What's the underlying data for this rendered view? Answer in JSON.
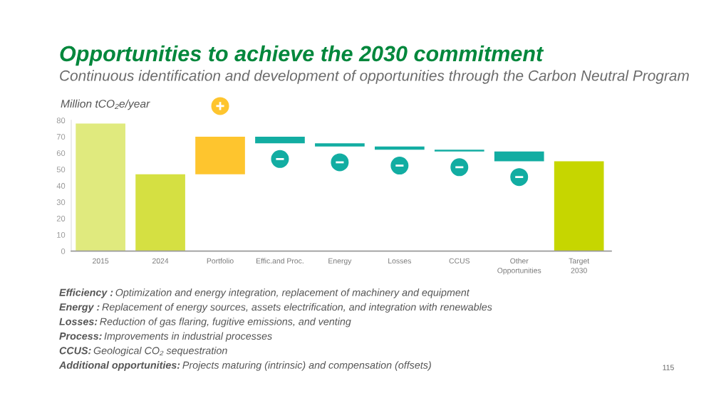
{
  "chart_data": {
    "type": "bar",
    "title": "Opportunities to achieve the 2030 commitment",
    "subtitle": "Continuous identification and development of opportunities through the Carbon Neutral Program",
    "ylabel": "Million tCO₂e/year",
    "categories": [
      "2015",
      "2024",
      "Portfolio",
      "Effic.and Proc.",
      "Energy",
      "Losses",
      "CCUS",
      "Other\nOpportunities",
      "Target\n2030"
    ],
    "values": [
      78,
      47,
      23,
      -4,
      -2,
      -2,
      -1,
      -6,
      55
    ],
    "base": [
      null,
      null,
      47,
      70,
      66,
      64,
      62,
      61,
      null
    ],
    "colors": [
      "#e0ea7e",
      "#d5e042",
      "#fec52e",
      "#12ada2",
      "#12ada2",
      "#12ada2",
      "#12ada2",
      "#12ada2",
      "#c6d600"
    ],
    "ylim": [
      0,
      80
    ],
    "yticks": [
      0,
      10,
      20,
      30,
      40,
      50,
      60,
      70,
      80
    ],
    "annotations": [
      "Efficiency :",
      "Optimization and energy integration, replacement of machinery and equipment",
      "Energy :",
      "Replacement of energy sources, assets electrification, and integration with renewables",
      "Losses:",
      "Reduction of gas flaring, fugitive emissions, and venting",
      "Process:",
      "Improvements in industrial processes",
      "CCUS:",
      "Geological CO₂ sequestration",
      "Additional opportunities:",
      "Projects maturing (intrinsic) and compensation (offsets)",
      "115"
    ]
  }
}
